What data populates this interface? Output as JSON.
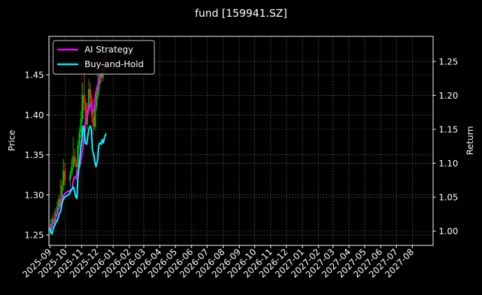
{
  "chart_data": {
    "type": "line",
    "title": "fund [159941.SZ]",
    "xlabel": "",
    "ylabel": "Price",
    "y2label": "Return",
    "x_ticks": [
      "2025-09",
      "2025-10",
      "2025-11",
      "2025-12",
      "2026-01",
      "2026-02",
      "2026-03",
      "2026-04",
      "2026-05",
      "2026-06",
      "2026-07",
      "2026-08",
      "2026-09",
      "2026-10",
      "2026-11",
      "2026-12",
      "2027-01",
      "2027-02",
      "2027-03",
      "2027-04",
      "2027-05",
      "2027-06",
      "2027-07",
      "2027-08"
    ],
    "y_ticks": [
      "1.25",
      "1.30",
      "1.35",
      "1.40",
      "1.45"
    ],
    "y2_ticks": [
      "1.00",
      "1.05",
      "1.10",
      "1.15",
      "1.20",
      "1.25"
    ],
    "xlim": [
      "2025-08-30",
      "2027-09-10"
    ],
    "ylim": [
      1.237,
      1.498
    ],
    "y2lim": [
      0.979,
      1.287
    ],
    "grid": true,
    "legend_position": "top-left",
    "background": "#000000",
    "candle_up_color": "#00c000",
    "candle_down_color": "#ff2020",
    "series": [
      {
        "name": "AI Strategy",
        "axis": "right",
        "color": "#ff00ff",
        "x": [
          "2025-09-01",
          "2025-09-03",
          "2025-09-05",
          "2025-09-08",
          "2025-09-10",
          "2025-09-12",
          "2025-09-15",
          "2025-09-17",
          "2025-09-19",
          "2025-09-22",
          "2025-09-24",
          "2025-09-26",
          "2025-09-29",
          "2025-10-09",
          "2025-10-11",
          "2025-10-14",
          "2025-10-16",
          "2025-10-18",
          "2025-10-21",
          "2025-10-23",
          "2025-10-25",
          "2025-10-28",
          "2025-10-30",
          "2025-11-01",
          "2025-11-04",
          "2025-11-06",
          "2025-11-08",
          "2025-11-11",
          "2025-11-13",
          "2025-11-15",
          "2025-11-18",
          "2025-11-20",
          "2025-11-22",
          "2025-11-25",
          "2025-11-27",
          "2025-11-29",
          "2025-12-02",
          "2025-12-04",
          "2025-12-06",
          "2025-12-09",
          "2025-12-11",
          "2025-12-13",
          "2025-12-16",
          "2025-12-18"
        ],
        "values": [
          1.005,
          1.003,
          1.01,
          1.012,
          1.015,
          1.02,
          1.025,
          1.03,
          1.035,
          1.04,
          1.045,
          1.05,
          1.055,
          1.06,
          1.058,
          1.062,
          1.075,
          1.08,
          1.078,
          1.085,
          1.09,
          1.095,
          1.1,
          1.11,
          1.125,
          1.14,
          1.16,
          1.165,
          1.18,
          1.178,
          1.185,
          1.19,
          1.175,
          1.18,
          1.195,
          1.205,
          1.215,
          1.218,
          1.225,
          1.23,
          1.24,
          1.248,
          1.255,
          1.262
        ]
      },
      {
        "name": "Buy-and-Hold",
        "axis": "right",
        "color": "#00f0ff",
        "x": [
          "2025-09-01",
          "2025-09-03",
          "2025-09-05",
          "2025-09-08",
          "2025-09-10",
          "2025-09-12",
          "2025-09-15",
          "2025-09-17",
          "2025-09-19",
          "2025-09-22",
          "2025-09-24",
          "2025-09-26",
          "2025-09-29",
          "2025-10-09",
          "2025-10-11",
          "2025-10-14",
          "2025-10-16",
          "2025-10-18",
          "2025-10-21",
          "2025-10-23",
          "2025-10-25",
          "2025-10-28",
          "2025-10-30",
          "2025-11-01",
          "2025-11-04",
          "2025-11-06",
          "2025-11-08",
          "2025-11-11",
          "2025-11-13",
          "2025-11-15",
          "2025-11-18",
          "2025-11-20",
          "2025-11-22",
          "2025-11-25",
          "2025-11-27",
          "2025-11-29",
          "2025-12-02",
          "2025-12-04",
          "2025-12-06",
          "2025-12-09",
          "2025-12-11",
          "2025-12-13",
          "2025-12-16",
          "2025-12-18"
        ],
        "values": [
          1.003,
          0.998,
          0.996,
          1.005,
          1.008,
          1.012,
          1.015,
          1.02,
          1.025,
          1.03,
          1.04,
          1.045,
          1.05,
          1.055,
          1.06,
          1.063,
          1.065,
          1.06,
          1.05,
          1.048,
          1.08,
          1.1,
          1.12,
          1.13,
          1.155,
          1.15,
          1.13,
          1.128,
          1.14,
          1.15,
          1.155,
          1.15,
          1.12,
          1.11,
          1.1,
          1.095,
          1.105,
          1.125,
          1.13,
          1.128,
          1.135,
          1.13,
          1.14,
          1.143
        ]
      }
    ],
    "candles": [
      {
        "x": "2025-09-03",
        "open": 1.252,
        "close": 1.264,
        "high": 1.27,
        "low": 1.25
      },
      {
        "x": "2025-09-06",
        "open": 1.264,
        "close": 1.27,
        "high": 1.275,
        "low": 1.258
      },
      {
        "x": "2025-09-09",
        "open": 1.27,
        "close": 1.268,
        "high": 1.28,
        "low": 1.262
      },
      {
        "x": "2025-09-12",
        "open": 1.268,
        "close": 1.278,
        "high": 1.283,
        "low": 1.265
      },
      {
        "x": "2025-09-15",
        "open": 1.278,
        "close": 1.285,
        "high": 1.292,
        "low": 1.275
      },
      {
        "x": "2025-09-18",
        "open": 1.285,
        "close": 1.295,
        "high": 1.3,
        "low": 1.283
      },
      {
        "x": "2025-09-21",
        "open": 1.295,
        "close": 1.288,
        "high": 1.32,
        "low": 1.285
      },
      {
        "x": "2025-09-24",
        "open": 1.288,
        "close": 1.312,
        "high": 1.318,
        "low": 1.286
      },
      {
        "x": "2025-09-27",
        "open": 1.312,
        "close": 1.33,
        "high": 1.345,
        "low": 1.305
      },
      {
        "x": "2025-09-30",
        "open": 1.33,
        "close": 1.318,
        "high": 1.34,
        "low": 1.312
      },
      {
        "x": "2025-10-10",
        "open": 1.318,
        "close": 1.325,
        "high": 1.33,
        "low": 1.31
      },
      {
        "x": "2025-10-13",
        "open": 1.325,
        "close": 1.335,
        "high": 1.345,
        "low": 1.322
      },
      {
        "x": "2025-10-16",
        "open": 1.335,
        "close": 1.348,
        "high": 1.372,
        "low": 1.33
      },
      {
        "x": "2025-10-19",
        "open": 1.348,
        "close": 1.34,
        "high": 1.358,
        "low": 1.335
      },
      {
        "x": "2025-10-22",
        "open": 1.34,
        "close": 1.335,
        "high": 1.345,
        "low": 1.318
      },
      {
        "x": "2025-10-25",
        "open": 1.335,
        "close": 1.362,
        "high": 1.368,
        "low": 1.33
      },
      {
        "x": "2025-10-28",
        "open": 1.362,
        "close": 1.378,
        "high": 1.385,
        "low": 1.358
      },
      {
        "x": "2025-10-31",
        "open": 1.378,
        "close": 1.395,
        "high": 1.405,
        "low": 1.372
      },
      {
        "x": "2025-11-03",
        "open": 1.395,
        "close": 1.425,
        "high": 1.44,
        "low": 1.39
      },
      {
        "x": "2025-11-06",
        "open": 1.425,
        "close": 1.415,
        "high": 1.452,
        "low": 1.405
      },
      {
        "x": "2025-11-09",
        "open": 1.415,
        "close": 1.388,
        "high": 1.42,
        "low": 1.378
      },
      {
        "x": "2025-11-12",
        "open": 1.388,
        "close": 1.405,
        "high": 1.415,
        "low": 1.382
      },
      {
        "x": "2025-11-15",
        "open": 1.405,
        "close": 1.432,
        "high": 1.445,
        "low": 1.4
      },
      {
        "x": "2025-11-18",
        "open": 1.432,
        "close": 1.42,
        "high": 1.44,
        "low": 1.412
      },
      {
        "x": "2025-11-21",
        "open": 1.42,
        "close": 1.398,
        "high": 1.425,
        "low": 1.39
      },
      {
        "x": "2025-11-24",
        "open": 1.398,
        "close": 1.385,
        "high": 1.405,
        "low": 1.375
      },
      {
        "x": "2025-11-27",
        "open": 1.385,
        "close": 1.41,
        "high": 1.418,
        "low": 1.38
      },
      {
        "x": "2025-11-30",
        "open": 1.41,
        "close": 1.425,
        "high": 1.432,
        "low": 1.405
      },
      {
        "x": "2025-12-03",
        "open": 1.425,
        "close": 1.438,
        "high": 1.45,
        "low": 1.42
      },
      {
        "x": "2025-12-06",
        "open": 1.438,
        "close": 1.45,
        "high": 1.458,
        "low": 1.432
      },
      {
        "x": "2025-12-09",
        "open": 1.45,
        "close": 1.446,
        "high": 1.462,
        "low": 1.44
      },
      {
        "x": "2025-12-12",
        "open": 1.446,
        "close": 1.455,
        "high": 1.468,
        "low": 1.442
      },
      {
        "x": "2025-12-15",
        "open": 1.455,
        "close": 1.462,
        "high": 1.472,
        "low": 1.45
      }
    ]
  }
}
